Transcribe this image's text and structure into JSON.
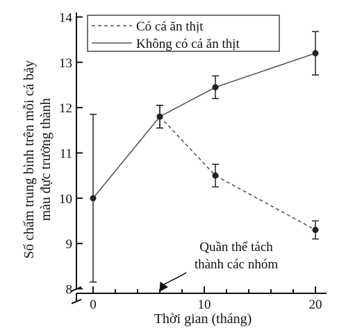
{
  "chart_data": {
    "type": "line",
    "xlabel": "Thời gian (tháng)",
    "ylabel_lines": [
      "Số chấm trung bình trên mỗi cá bảy",
      "màu đực trưởng thành"
    ],
    "xlim": [
      -1.5,
      21
    ],
    "ylim": [
      7.9,
      14.1
    ],
    "axis_break": true,
    "x_ticks": [
      0,
      10,
      20
    ],
    "y_ticks": [
      8,
      9,
      10,
      11,
      12,
      13,
      14
    ],
    "legend_position": "top-right",
    "series": [
      {
        "name": "Có cá ăn thịt",
        "style": "dashed",
        "x": [
          6,
          11,
          20
        ],
        "y": [
          11.8,
          10.5,
          9.3
        ],
        "err": [
          0.25,
          0.25,
          0.2
        ]
      },
      {
        "name": "Không có cá ăn thịt",
        "style": "solid",
        "x": [
          0,
          6,
          11,
          20
        ],
        "y": [
          10.0,
          11.8,
          12.45,
          13.2
        ],
        "err": [
          1.85,
          0.25,
          0.25,
          0.48
        ]
      }
    ],
    "annotation": {
      "lines": [
        "Quần thể tách",
        "thành các nhóm"
      ],
      "x": 6
    }
  },
  "colors": {
    "axis": "#111111",
    "dashed_line": "#555555",
    "solid_line": "#555555",
    "marker": "#222222"
  }
}
